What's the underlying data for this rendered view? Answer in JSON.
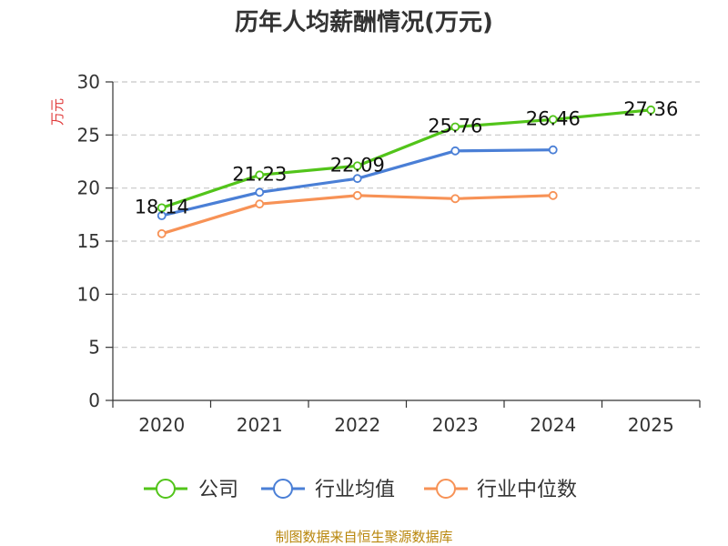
{
  "chart_data": {
    "type": "line",
    "title": "历年人均薪酬情况(万元)",
    "ylabel": "万元",
    "xlabel": "",
    "categories": [
      "2020",
      "2021",
      "2022",
      "2023",
      "2024",
      "2025"
    ],
    "ylim": [
      0,
      30
    ],
    "yticks": [
      0,
      5,
      10,
      15,
      20,
      25,
      30
    ],
    "grid": true,
    "legend_position": "bottom",
    "series": [
      {
        "name": "公司",
        "color": "#52c41a",
        "values": [
          18.14,
          21.23,
          22.09,
          25.76,
          26.46,
          27.36
        ],
        "labels": [
          "18.14",
          "21.23",
          "22.09",
          "25.76",
          "26.46",
          "27.36"
        ]
      },
      {
        "name": "行业均值",
        "color": "#4a7fd6",
        "values": [
          17.4,
          19.6,
          20.9,
          23.5,
          23.6,
          null
        ]
      },
      {
        "name": "行业中位数",
        "color": "#f79256",
        "values": [
          15.7,
          18.5,
          19.3,
          19.0,
          19.3,
          null
        ]
      }
    ]
  },
  "source": "制图数据来自恒生聚源数据库",
  "colors": {
    "title": "#333333",
    "axis_label": "#e03a3a",
    "source": "#b8860b",
    "tick": "#333333"
  }
}
